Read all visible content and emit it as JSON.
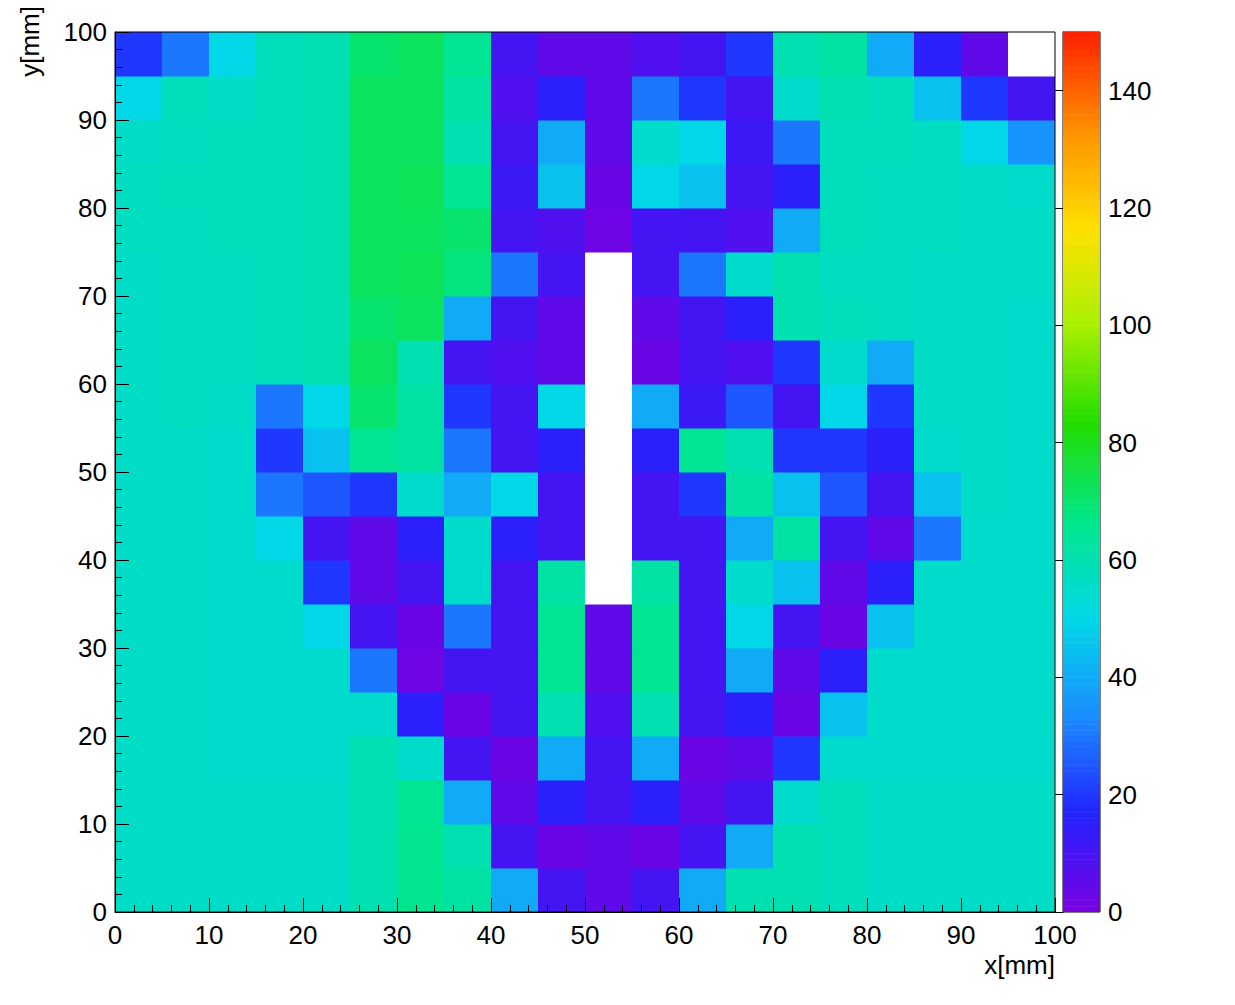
{
  "chart_data": {
    "type": "heatmap",
    "x_label": "x[mm]",
    "y_label": "y[mm]",
    "xlim": [
      0,
      100
    ],
    "xticks": [
      0,
      10,
      20,
      30,
      40,
      50,
      60,
      70,
      80,
      90,
      100
    ],
    "ylim": [
      0,
      100
    ],
    "yticks": [
      0,
      10,
      20,
      30,
      40,
      50,
      60,
      70,
      80,
      90,
      100
    ],
    "grid": false,
    "x_bins": [
      0,
      5,
      10,
      15,
      20,
      25,
      30,
      35,
      40,
      45,
      50,
      55,
      60,
      65,
      70,
      75,
      80,
      85,
      90,
      95,
      100
    ],
    "y_bins": [
      0,
      5,
      10,
      15,
      20,
      25,
      30,
      35,
      40,
      45,
      50,
      55,
      60,
      65,
      70,
      75,
      80,
      85,
      90,
      95,
      100
    ],
    "z": [
      [
        56,
        56,
        56,
        56,
        56,
        60,
        66,
        62,
        40,
        10,
        5,
        10,
        40,
        60,
        60,
        58,
        56,
        56,
        56,
        56
      ],
      [
        56,
        56,
        56,
        56,
        56,
        60,
        66,
        60,
        10,
        3,
        5,
        3,
        10,
        40,
        60,
        58,
        56,
        56,
        56,
        56
      ],
      [
        56,
        56,
        56,
        56,
        56,
        60,
        65,
        40,
        5,
        15,
        10,
        15,
        5,
        10,
        55,
        58,
        56,
        56,
        56,
        56
      ],
      [
        56,
        56,
        55,
        55,
        55,
        60,
        55,
        10,
        3,
        40,
        10,
        40,
        3,
        5,
        20,
        55,
        55,
        55,
        55,
        55
      ],
      [
        56,
        56,
        55,
        55,
        55,
        55,
        15,
        3,
        10,
        60,
        8,
        60,
        10,
        15,
        3,
        45,
        55,
        55,
        55,
        55
      ],
      [
        56,
        56,
        55,
        55,
        55,
        30,
        2,
        10,
        10,
        65,
        5,
        65,
        10,
        40,
        5,
        15,
        55,
        55,
        55,
        55
      ],
      [
        56,
        56,
        55,
        55,
        50,
        10,
        3,
        30,
        10,
        65,
        5,
        65,
        10,
        50,
        10,
        3,
        45,
        55,
        55,
        55
      ],
      [
        56,
        56,
        55,
        55,
        20,
        5,
        10,
        55,
        10,
        62,
        0,
        62,
        10,
        55,
        45,
        5,
        15,
        55,
        55,
        55
      ],
      [
        56,
        56,
        55,
        50,
        10,
        5,
        15,
        55,
        15,
        10,
        0,
        10,
        10,
        40,
        62,
        10,
        5,
        30,
        55,
        55
      ],
      [
        56,
        56,
        55,
        30,
        25,
        20,
        55,
        40,
        50,
        10,
        0,
        10,
        20,
        62,
        45,
        25,
        10,
        45,
        56,
        55
      ],
      [
        56,
        56,
        55,
        20,
        45,
        65,
        62,
        30,
        10,
        15,
        0,
        15,
        65,
        60,
        20,
        20,
        15,
        55,
        56,
        55
      ],
      [
        56,
        57,
        56,
        30,
        50,
        70,
        62,
        20,
        10,
        50,
        0,
        40,
        12,
        25,
        10,
        50,
        20,
        56,
        56,
        55
      ],
      [
        56,
        57,
        57,
        58,
        60,
        72,
        60,
        10,
        8,
        5,
        0,
        3,
        10,
        8,
        20,
        55,
        40,
        56,
        56,
        55
      ],
      [
        56,
        57,
        57,
        58,
        60,
        70,
        72,
        40,
        10,
        5,
        0,
        5,
        10,
        15,
        60,
        58,
        57,
        56,
        56,
        55
      ],
      [
        56,
        57,
        57,
        58,
        60,
        72,
        73,
        68,
        30,
        10,
        0,
        10,
        30,
        55,
        60,
        57,
        57,
        56,
        56,
        56
      ],
      [
        57,
        57,
        58,
        58,
        60,
        72,
        72,
        70,
        10,
        8,
        2,
        10,
        10,
        8,
        40,
        58,
        57,
        57,
        56,
        56
      ],
      [
        57,
        58,
        58,
        58,
        60,
        72,
        73,
        65,
        12,
        45,
        3,
        50,
        45,
        10,
        15,
        58,
        57,
        57,
        56,
        55
      ],
      [
        56,
        57,
        58,
        58,
        60,
        72,
        72,
        60,
        10,
        40,
        5,
        55,
        50,
        12,
        30,
        58,
        58,
        57,
        50,
        35
      ],
      [
        50,
        58,
        56,
        58,
        60,
        72,
        72,
        62,
        8,
        15,
        5,
        30,
        20,
        10,
        55,
        60,
        58,
        45,
        20,
        10
      ],
      [
        20,
        30,
        50,
        58,
        60,
        70,
        72,
        65,
        10,
        5,
        5,
        8,
        10,
        20,
        60,
        62,
        40,
        15,
        5,
        0
      ]
    ],
    "zlim": [
      0,
      150
    ],
    "zticks": [
      0,
      20,
      40,
      60,
      80,
      100,
      120,
      140
    ]
  }
}
